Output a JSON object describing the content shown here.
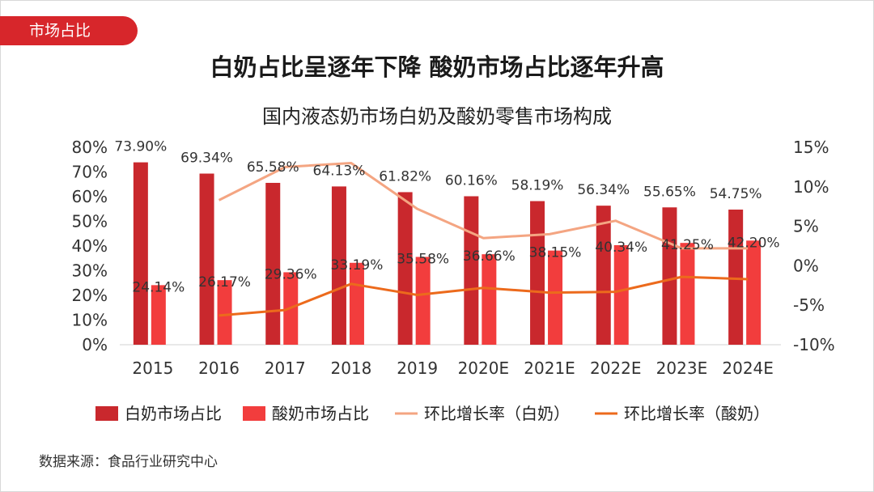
{
  "tag": "市场占比",
  "headline": "白奶占比呈逐年下降 酸奶市场占比逐年升高",
  "source": "数据来源：食品行业研究中心",
  "chart_data": {
    "type": "bar",
    "title": "国内液态奶市场白奶及酸奶零售市场构成",
    "categories": [
      "2015",
      "2016",
      "2017",
      "2018",
      "2019",
      "2020E",
      "2021E",
      "2022E",
      "2023E",
      "2024E"
    ],
    "y_left": {
      "min": 0,
      "max": 80,
      "step": 10,
      "tick_labels": [
        "0%",
        "10%",
        "20%",
        "30%",
        "40%",
        "50%",
        "60%",
        "70%",
        "80%"
      ]
    },
    "y_right": {
      "min": -10,
      "max": 15,
      "step": 5,
      "tick_labels": [
        "-10%",
        "-5%",
        "0%",
        "5%",
        "10%",
        "15%"
      ]
    },
    "series": [
      {
        "name": "白奶市场占比",
        "kind": "bar",
        "axis": "left",
        "color": "#c9282d",
        "values": [
          73.9,
          69.34,
          65.58,
          64.13,
          61.82,
          60.16,
          58.19,
          56.34,
          55.65,
          54.75
        ],
        "labels": [
          "73.90%",
          "69.34%",
          "65.58%",
          "64.13%",
          "61.82%",
          "60.16%",
          "58.19%",
          "56.34%",
          "55.65%",
          "54.75%"
        ]
      },
      {
        "name": "酸奶市场占比",
        "kind": "bar",
        "axis": "right_bar",
        "color": "#f23d3d",
        "values": [
          24.14,
          26.17,
          29.36,
          33.19,
          35.58,
          36.66,
          38.15,
          40.34,
          41.25,
          42.2
        ],
        "labels": [
          "24.14%",
          "26.17%",
          "29.36%",
          "33.19%",
          "35.58%",
          "36.66%",
          "38.15%",
          "40.34%",
          "41.25%",
          "42.20%"
        ]
      },
      {
        "name": "环比增长率（白奶）",
        "kind": "line",
        "axis": "right",
        "color": "#f4a582",
        "values": [
          null,
          8.3,
          12.5,
          13.0,
          7.2,
          3.5,
          4.0,
          5.7,
          2.2,
          2.2
        ]
      },
      {
        "name": "环比增长率（酸奶）",
        "kind": "line",
        "axis": "right",
        "color": "#ec6a1c",
        "values": [
          null,
          -6.3,
          -5.6,
          -2.3,
          -3.7,
          -2.8,
          -3.4,
          -3.3,
          -1.4,
          -1.7
        ]
      }
    ],
    "legend_position": "bottom",
    "grid": false
  }
}
